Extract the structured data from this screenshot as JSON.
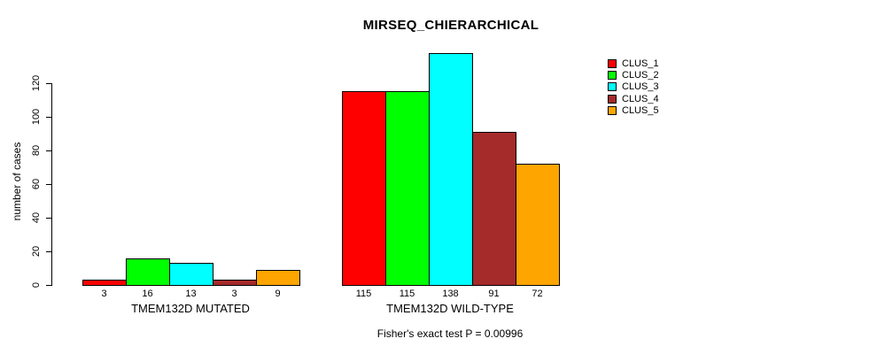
{
  "chart_data": {
    "type": "bar",
    "title": "MIRSEQ_CHIERARCHICAL",
    "ylabel": "number of cases",
    "xlabel": "",
    "yticks": [
      0,
      20,
      40,
      60,
      80,
      100,
      120
    ],
    "ylim": [
      0,
      138
    ],
    "grid": false,
    "legend_position": "top-right",
    "categories": [
      "TMEM132D MUTATED",
      "TMEM132D WILD-TYPE"
    ],
    "groups": [
      {
        "label": "TMEM132D MUTATED",
        "values": [
          3,
          16,
          13,
          3,
          9
        ]
      },
      {
        "label": "TMEM132D WILD-TYPE",
        "values": [
          115,
          115,
          138,
          91,
          72
        ]
      }
    ],
    "series": [
      {
        "name": "CLUS_1",
        "color": "#FF0000",
        "values": [
          3,
          115
        ]
      },
      {
        "name": "CLUS_2",
        "color": "#00FF00",
        "values": [
          16,
          115
        ]
      },
      {
        "name": "CLUS_3",
        "color": "#00FFFF",
        "values": [
          13,
          138
        ]
      },
      {
        "name": "CLUS_4",
        "color": "#A52A2A",
        "values": [
          3,
          91
        ]
      },
      {
        "name": "CLUS_5",
        "color": "#FFA500",
        "values": [
          9,
          72
        ]
      }
    ],
    "annotation": "Fisher's exact test P = 0.00996"
  }
}
